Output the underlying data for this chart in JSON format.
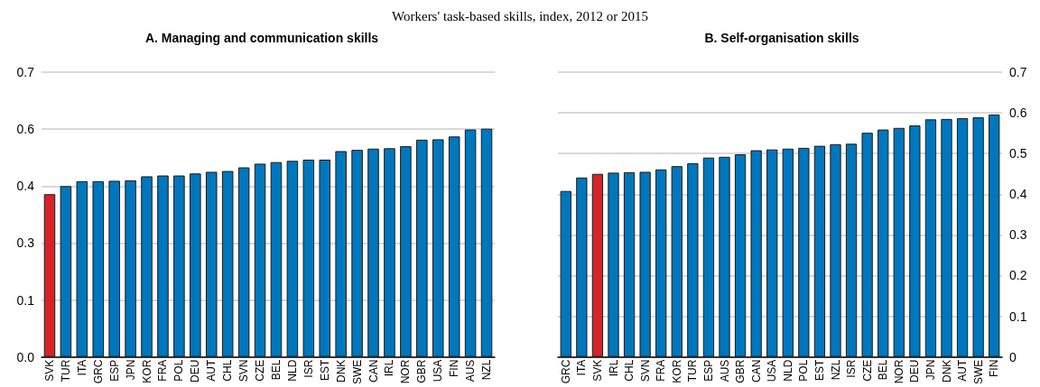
{
  "chart_data": [
    {
      "type": "bar",
      "title": "Workers' task-based skills, index, 2012 or 2015",
      "subtitle": "A. Managing and communication skills",
      "categories": [
        "SVK",
        "TUR",
        "ITA",
        "GRC",
        "ESP",
        "JPN",
        "KOR",
        "FRA",
        "POL",
        "DEU",
        "AUT",
        "CHL",
        "SVN",
        "CZE",
        "BEL",
        "NLD",
        "ISR",
        "EST",
        "DNK",
        "SWE",
        "CAN",
        "IRL",
        "NOR",
        "GBR",
        "USA",
        "FIN",
        "AUS",
        "NZL"
      ],
      "values": [
        0.4,
        0.42,
        0.432,
        0.432,
        0.433,
        0.434,
        0.444,
        0.446,
        0.446,
        0.451,
        0.455,
        0.457,
        0.466,
        0.475,
        0.479,
        0.482,
        0.485,
        0.485,
        0.506,
        0.509,
        0.512,
        0.513,
        0.518,
        0.534,
        0.535,
        0.542,
        0.559,
        0.561
      ],
      "colors": [
        "#da2128",
        "#0077bd",
        "#0077bd",
        "#0077bd",
        "#0077bd",
        "#0077bd",
        "#0077bd",
        "#0077bd",
        "#0077bd",
        "#0077bd",
        "#0077bd",
        "#0077bd",
        "#0077bd",
        "#0077bd",
        "#0077bd",
        "#0077bd",
        "#0077bd",
        "#0077bd",
        "#0077bd",
        "#0077bd",
        "#0077bd",
        "#0077bd",
        "#0077bd",
        "#0077bd",
        "#0077bd",
        "#0077bd",
        "#0077bd",
        "#0077bd"
      ],
      "ylim": [
        0,
        0.7
      ],
      "yticks": [
        {
          "value": 0,
          "label": "0.0"
        },
        {
          "value": 0.14,
          "label": "0.1"
        },
        {
          "value": 0.28,
          "label": "0.3"
        },
        {
          "value": 0.42,
          "label": "0.4"
        },
        {
          "value": 0.56,
          "label": "0.6"
        },
        {
          "value": 0.7,
          "label": "0.7"
        }
      ],
      "grid": "y"
    },
    {
      "type": "bar",
      "subtitle": "B. Self-organisation skills",
      "categories": [
        "GRC",
        "ITA",
        "SVK",
        "IRL",
        "CHL",
        "SVN",
        "FRA",
        "KOR",
        "TUR",
        "ESP",
        "AUS",
        "GBR",
        "CAN",
        "USA",
        "NLD",
        "POL",
        "EST",
        "NZL",
        "ISR",
        "CZE",
        "BEL",
        "NOR",
        "DEU",
        "JPN",
        "DNK",
        "AUT",
        "SWE",
        "FIN"
      ],
      "series": [
        {
          "axis": "y2",
          "values": [
            0.408,
            0.441,
            0.45,
            0.453,
            0.454,
            0.455,
            0.461,
            0.469,
            0.476,
            0.49,
            0.492,
            0.498,
            0.508,
            0.51,
            0.512,
            0.514,
            0.519,
            0.523,
            0.524,
            0.551,
            0.559,
            0.563,
            0.569,
            0.584,
            0.585,
            0.587,
            0.589,
            0.596
          ],
          "colors": [
            "#0077bd",
            "#0077bd",
            "#da2128",
            "#0077bd",
            "#0077bd",
            "#0077bd",
            "#0077bd",
            "#0077bd",
            "#0077bd",
            "#0077bd",
            "#0077bd",
            "#0077bd",
            "#0077bd",
            "#0077bd",
            "#0077bd",
            "#0077bd",
            "#0077bd",
            "#0077bd",
            "#0077bd",
            "#0077bd",
            "#0077bd",
            "#0077bd",
            "#0077bd",
            "#0077bd",
            "#0077bd",
            "#0077bd",
            "#0077bd",
            "#0077bd"
          ]
        }
      ],
      "y2lim": [
        0,
        0.7
      ],
      "y2ticks": [
        0,
        0.1,
        0.2,
        0.3,
        0.4,
        0.5,
        0.6,
        0.7
      ],
      "grid": "y"
    }
  ]
}
